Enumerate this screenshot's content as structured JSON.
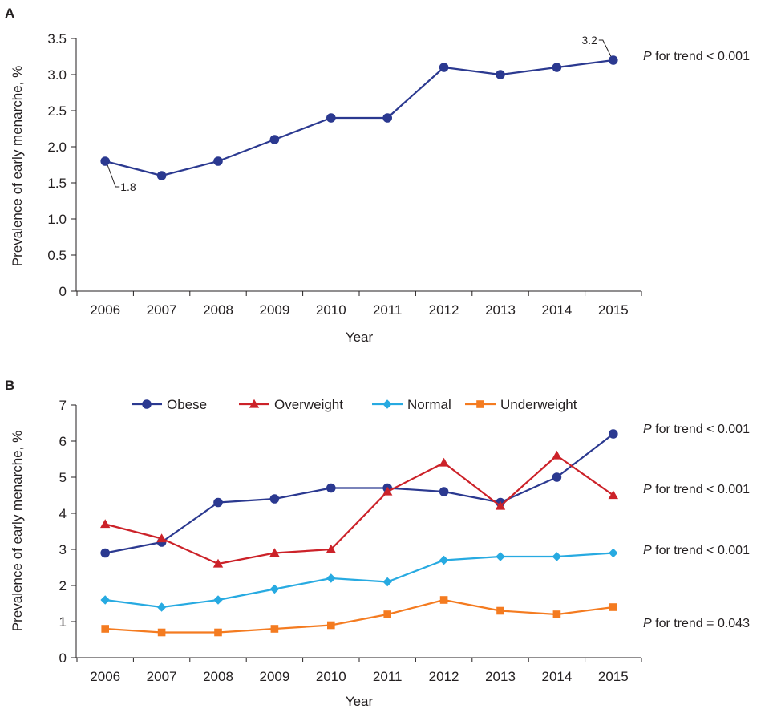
{
  "chart_data": [
    {
      "panel": "A",
      "type": "line",
      "xlabel": "Year",
      "ylabel": "Prevalence of early menarche, %",
      "ylim": [
        0,
        3.5
      ],
      "yticks": [
        "0",
        "0.5",
        "1.0",
        "1.5",
        "2.0",
        "2.5",
        "3.0",
        "3.5"
      ],
      "categories": [
        "2006",
        "2007",
        "2008",
        "2009",
        "2010",
        "2011",
        "2012",
        "2013",
        "2014",
        "2015"
      ],
      "series": [
        {
          "values": [
            1.8,
            1.6,
            1.8,
            2.1,
            2.4,
            2.4,
            3.1,
            3.0,
            3.1,
            3.2
          ],
          "color": "#2b3990",
          "marker": "circle"
        }
      ],
      "data_labels": [
        {
          "index": 0,
          "text": "1.8",
          "position": "below-right"
        },
        {
          "index": 9,
          "text": "3.2",
          "position": "above-left"
        }
      ],
      "annotations": [
        {
          "p": "P",
          "rest": " for trend < 0.001",
          "series_index": 0
        }
      ],
      "grid": false
    },
    {
      "panel": "B",
      "type": "line",
      "xlabel": "Year",
      "ylabel": "Prevalence of early menarche, %",
      "ylim": [
        0,
        7
      ],
      "yticks": [
        "0",
        "1",
        "2",
        "3",
        "4",
        "5",
        "6",
        "7"
      ],
      "categories": [
        "2006",
        "2007",
        "2008",
        "2009",
        "2010",
        "2011",
        "2012",
        "2013",
        "2014",
        "2015"
      ],
      "legend": "top",
      "series": [
        {
          "name": "Obese",
          "values": [
            2.9,
            3.2,
            4.3,
            4.4,
            4.7,
            4.7,
            4.6,
            4.3,
            5.0,
            6.2
          ],
          "color": "#2b3990",
          "marker": "circle"
        },
        {
          "name": "Overweight",
          "values": [
            3.7,
            3.3,
            2.6,
            2.9,
            3.0,
            4.6,
            5.4,
            4.2,
            5.6,
            4.5
          ],
          "color": "#cc2229",
          "marker": "triangle"
        },
        {
          "name": "Normal",
          "values": [
            1.6,
            1.4,
            1.6,
            1.9,
            2.2,
            2.1,
            2.7,
            2.8,
            2.8,
            2.9
          ],
          "color": "#27aae1",
          "marker": "diamond"
        },
        {
          "name": "Underweight",
          "values": [
            0.8,
            0.7,
            0.7,
            0.8,
            0.9,
            1.2,
            1.6,
            1.3,
            1.2,
            1.4
          ],
          "color": "#f47b20",
          "marker": "square"
        }
      ],
      "annotations": [
        {
          "p": "P",
          "rest": " for trend < 0.001",
          "series_index": 0
        },
        {
          "p": "P",
          "rest": " for trend < 0.001",
          "series_index": 1
        },
        {
          "p": "P",
          "rest": " for trend < 0.001",
          "series_index": 2
        },
        {
          "p": "P",
          "rest": " for trend = 0.043",
          "series_index": 3
        }
      ],
      "grid": false
    }
  ]
}
